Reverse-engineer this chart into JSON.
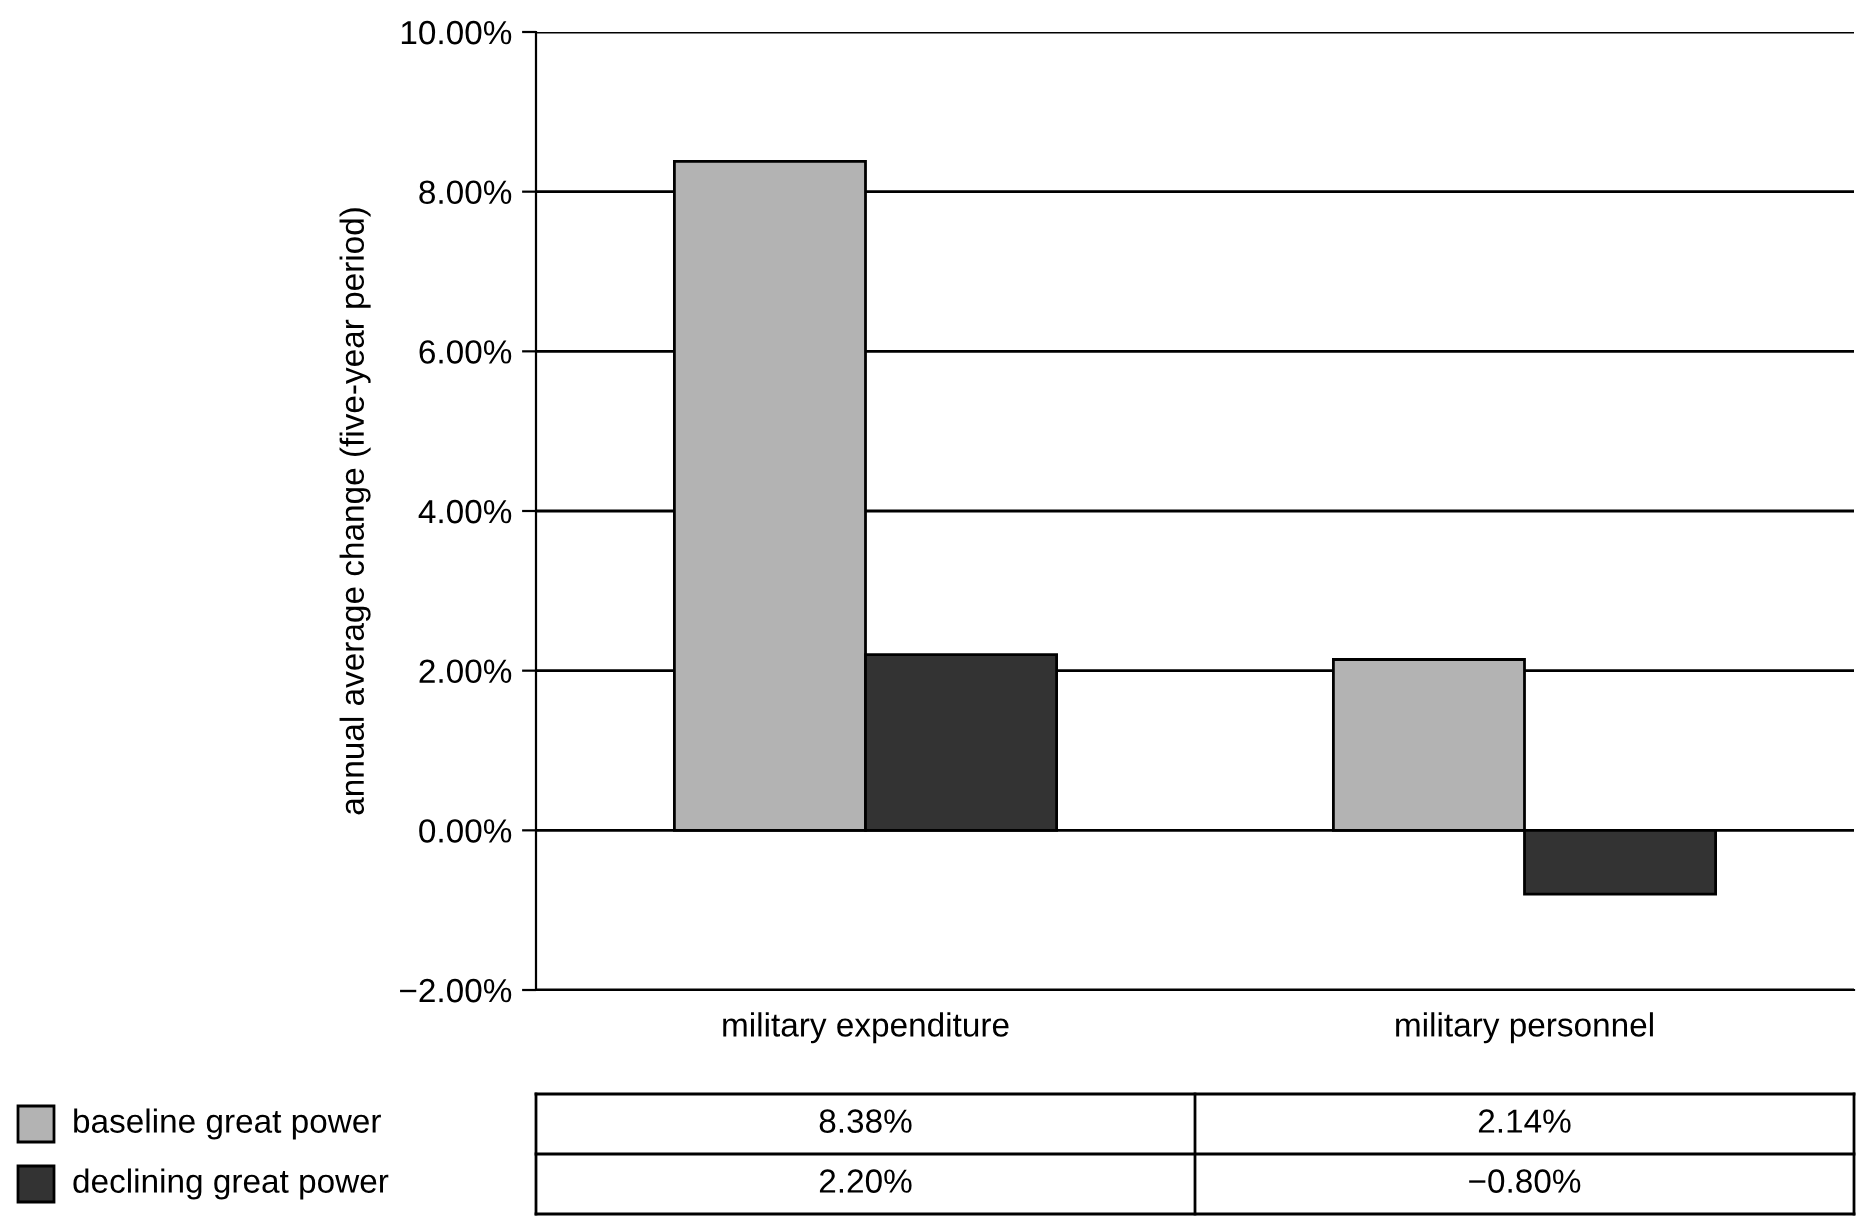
{
  "chart_data": {
    "type": "bar",
    "ylabel": "annual average change (five-year period)",
    "categories": [
      "military expenditure",
      "military personnel"
    ],
    "series": [
      {
        "name": "baseline great power",
        "color": "#b3b3b3",
        "values": [
          8.38,
          2.14
        ],
        "value_labels": [
          "8.38%",
          "2.14%"
        ]
      },
      {
        "name": "declining great power",
        "color": "#333333",
        "values": [
          2.2,
          -0.8
        ],
        "value_labels": [
          "2.20%",
          "−0.80%"
        ]
      }
    ],
    "ylim": [
      -2,
      10
    ],
    "yticks": [
      {
        "value": -2,
        "label": "−2.00%"
      },
      {
        "value": 0,
        "label": "0.00%"
      },
      {
        "value": 2,
        "label": "2.00%"
      },
      {
        "value": 4,
        "label": "4.00%"
      },
      {
        "value": 6,
        "label": "6.00%"
      },
      {
        "value": 8,
        "label": "8.00%"
      },
      {
        "value": 10,
        "label": "10.00%"
      }
    ],
    "grid": "y",
    "legend": "bottom left"
  }
}
